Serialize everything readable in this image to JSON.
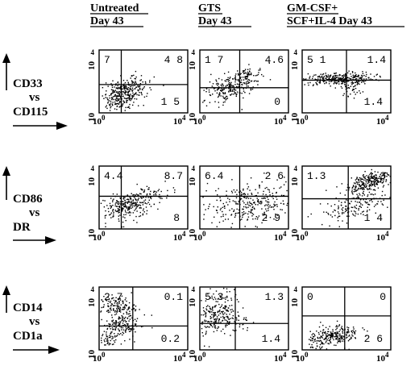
{
  "headers": [
    {
      "line1": "Untreated",
      "line2": "Day  43"
    },
    {
      "line1": "GTS",
      "line2": "Day  43"
    },
    {
      "line1": "GM-CSF+",
      "line2": "SCF+IL-4  Day  43"
    }
  ],
  "rows": [
    {
      "top": "CD33",
      "mid": "vs",
      "bot": "CD115"
    },
    {
      "top": "CD86",
      "mid": "vs",
      "bot": "DR"
    },
    {
      "top": "CD14",
      "mid": "vs",
      "bot": "CD1a"
    }
  ],
  "axis_ticks": {
    "base": "10",
    "exp0": "0",
    "exp4": "4"
  },
  "colors": {
    "ink": "#000000",
    "background": "#ffffff"
  },
  "chart_data": [
    {
      "type": "scatter",
      "row": "CD33 vs CD115",
      "column": "Untreated Day 43",
      "quadrants": {
        "ul": "7",
        "ur": "4 8",
        "ll": "",
        "lr": "1 5"
      },
      "xlim": [
        1,
        10000
      ],
      "ylim": [
        1,
        10000
      ],
      "log_scale": true
    },
    {
      "type": "scatter",
      "row": "CD33 vs CD115",
      "column": "GTS Day 43",
      "quadrants": {
        "ul": "1 7",
        "ur": "4.6",
        "ll": "",
        "lr": "0"
      },
      "xlim": [
        1,
        10000
      ],
      "ylim": [
        1,
        10000
      ],
      "log_scale": true
    },
    {
      "type": "scatter",
      "row": "CD33 vs CD115",
      "column": "GM-CSF+ SCF+IL-4 Day 43",
      "quadrants": {
        "ul": "5 1",
        "ur": "1.4",
        "ll": "",
        "lr": "1.4"
      },
      "xlim": [
        1,
        10000
      ],
      "ylim": [
        1,
        10000
      ],
      "log_scale": true
    },
    {
      "type": "scatter",
      "row": "CD86 vs DR",
      "column": "Untreated Day 43",
      "quadrants": {
        "ul": "4.4",
        "ur": "8.7",
        "ll": "",
        "lr": "8"
      },
      "xlim": [
        1,
        10000
      ],
      "ylim": [
        1,
        10000
      ],
      "log_scale": true
    },
    {
      "type": "scatter",
      "row": "CD86 vs DR",
      "column": "GTS Day 43",
      "quadrants": {
        "ul": "6.4",
        "ur": "2 6",
        "ll": "",
        "lr": "2 9"
      },
      "xlim": [
        1,
        10000
      ],
      "ylim": [
        1,
        10000
      ],
      "log_scale": true
    },
    {
      "type": "scatter",
      "row": "CD86 vs DR",
      "column": "GM-CSF+ SCF+IL-4 Day 43",
      "quadrants": {
        "ul": "1.3",
        "ur": "4 3",
        "ll": "",
        "lr": "1 4"
      },
      "xlim": [
        1,
        10000
      ],
      "ylim": [
        1,
        10000
      ],
      "log_scale": true
    },
    {
      "type": "scatter",
      "row": "CD14 vs CD1a",
      "column": "Untreated Day 43",
      "quadrants": {
        "ul": "2 7",
        "ur": "0.1",
        "ll": "",
        "lr": "0.2"
      },
      "xlim": [
        1,
        10000
      ],
      "ylim": [
        1,
        10000
      ],
      "log_scale": true
    },
    {
      "type": "scatter",
      "row": "CD14 vs CD1a",
      "column": "GTS Day 43",
      "quadrants": {
        "ul": "5 3",
        "ur": "1.3",
        "ll": "",
        "lr": "1.4"
      },
      "xlim": [
        1,
        10000
      ],
      "ylim": [
        1,
        10000
      ],
      "log_scale": true
    },
    {
      "type": "scatter",
      "row": "CD14 vs CD1a",
      "column": "GM-CSF+ SCF+IL-4 Day 43",
      "quadrants": {
        "ul": "0",
        "ur": "0",
        "ll": "",
        "lr": "2 6"
      },
      "xlim": [
        1,
        10000
      ],
      "ylim": [
        1,
        10000
      ],
      "log_scale": true
    }
  ]
}
